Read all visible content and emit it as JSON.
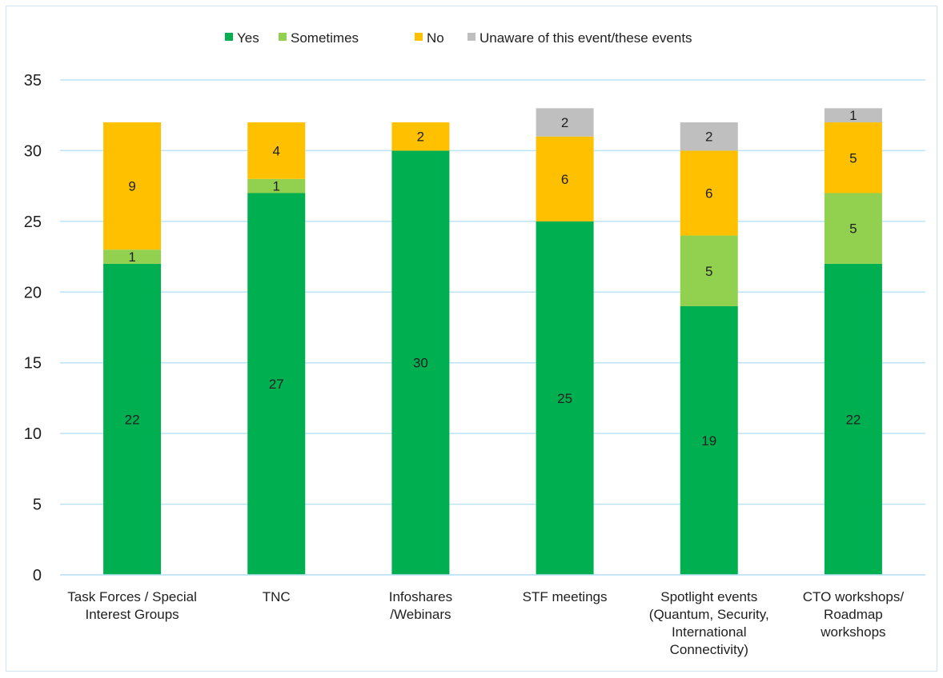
{
  "chart_data": {
    "type": "bar",
    "stacked": true,
    "categories": [
      [
        "Task Forces / Special",
        "Interest Groups"
      ],
      [
        "TNC"
      ],
      [
        "Infoshares",
        "/Webinars"
      ],
      [
        "STF meetings"
      ],
      [
        "Spotlight events",
        "(Quantum, Security,",
        "International",
        "Connectivity)"
      ],
      [
        "CTO workshops/",
        "Roadmap",
        "workshops"
      ]
    ],
    "series": [
      {
        "name": "Yes",
        "color": "#00b050",
        "values": [
          22,
          27,
          30,
          25,
          19,
          22
        ]
      },
      {
        "name": "Sometimes",
        "color": "#92d050",
        "values": [
          1,
          1,
          0,
          0,
          5,
          5
        ]
      },
      {
        "name": "No",
        "color": "#ffc000",
        "values": [
          9,
          4,
          2,
          6,
          6,
          5
        ]
      },
      {
        "name": "Unaware of this event/these events",
        "color": "#bfbfbf",
        "values": [
          0,
          0,
          0,
          2,
          2,
          1
        ]
      }
    ],
    "ylim": [
      0,
      35
    ],
    "yticks": [
      0,
      5,
      10,
      15,
      20,
      25,
      30,
      35
    ],
    "grid": true,
    "legend": "top-center",
    "gridline_color": "#bde3f6"
  }
}
